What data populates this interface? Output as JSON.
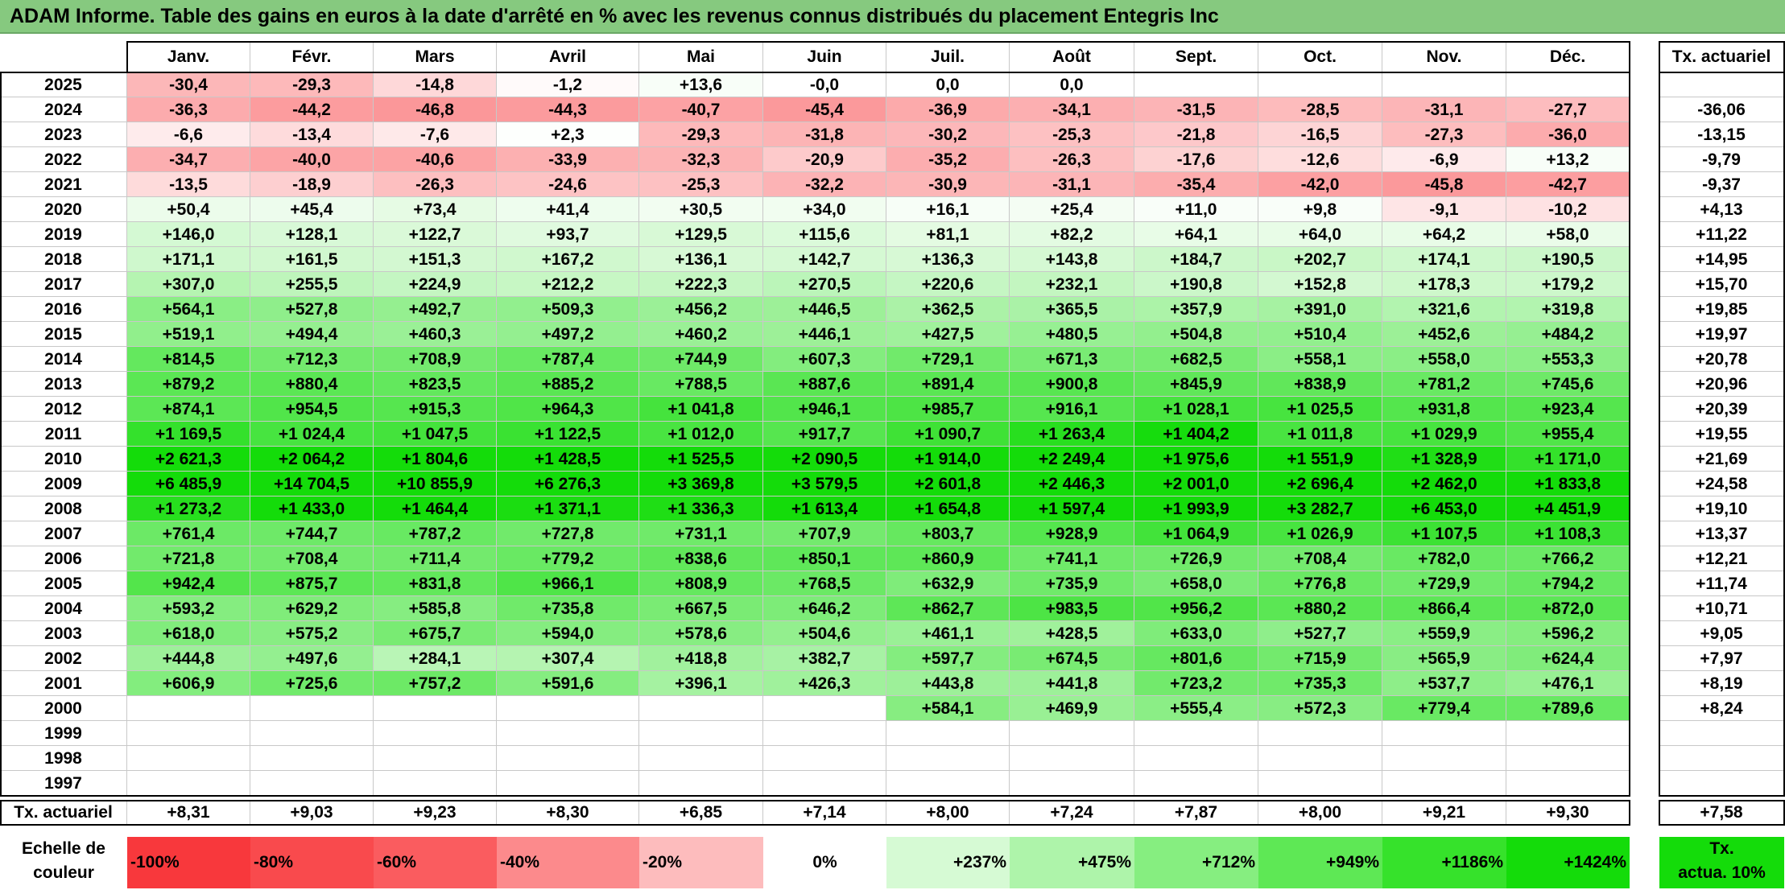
{
  "title": "ADAM Informe. Table des gains en euros à la date d'arrêté en % avec les revenus connus distribués du placement Entegris Inc",
  "chart_data": {
    "type": "table",
    "months": [
      "Janv.",
      "Févr.",
      "Mars",
      "Avril",
      "Mai",
      "Juin",
      "Juil.",
      "Août",
      "Sept.",
      "Oct.",
      "Nov.",
      "Déc."
    ],
    "rate_header": "Tx. actuariel",
    "rows": [
      {
        "year": "2025",
        "values": [
          "-30,4",
          "-29,3",
          "-14,8",
          "-1,2",
          "+13,6",
          "-0,0",
          "0,0",
          "0,0",
          "",
          "",
          "",
          ""
        ],
        "rate": ""
      },
      {
        "year": "2024",
        "values": [
          "-36,3",
          "-44,2",
          "-46,8",
          "-44,3",
          "-40,7",
          "-45,4",
          "-36,9",
          "-34,1",
          "-31,5",
          "-28,5",
          "-31,1",
          "-27,7"
        ],
        "rate": "-36,06"
      },
      {
        "year": "2023",
        "values": [
          "-6,6",
          "-13,4",
          "-7,6",
          "+2,3",
          "-29,3",
          "-31,8",
          "-30,2",
          "-25,3",
          "-21,8",
          "-16,5",
          "-27,3",
          "-36,0"
        ],
        "rate": "-13,15"
      },
      {
        "year": "2022",
        "values": [
          "-34,7",
          "-40,0",
          "-40,6",
          "-33,9",
          "-32,3",
          "-20,9",
          "-35,2",
          "-26,3",
          "-17,6",
          "-12,6",
          "-6,9",
          "+13,2"
        ],
        "rate": "-9,79"
      },
      {
        "year": "2021",
        "values": [
          "-13,5",
          "-18,9",
          "-26,3",
          "-24,6",
          "-25,3",
          "-32,2",
          "-30,9",
          "-31,1",
          "-35,4",
          "-42,0",
          "-45,8",
          "-42,7"
        ],
        "rate": "-9,37"
      },
      {
        "year": "2020",
        "values": [
          "+50,4",
          "+45,4",
          "+73,4",
          "+41,4",
          "+30,5",
          "+34,0",
          "+16,1",
          "+25,4",
          "+11,0",
          "+9,8",
          "-9,1",
          "-10,2"
        ],
        "rate": "+4,13"
      },
      {
        "year": "2019",
        "values": [
          "+146,0",
          "+128,1",
          "+122,7",
          "+93,7",
          "+129,5",
          "+115,6",
          "+81,1",
          "+82,2",
          "+64,1",
          "+64,0",
          "+64,2",
          "+58,0"
        ],
        "rate": "+11,22"
      },
      {
        "year": "2018",
        "values": [
          "+171,1",
          "+161,5",
          "+151,3",
          "+167,2",
          "+136,1",
          "+142,7",
          "+136,3",
          "+143,8",
          "+184,7",
          "+202,7",
          "+174,1",
          "+190,5"
        ],
        "rate": "+14,95"
      },
      {
        "year": "2017",
        "values": [
          "+307,0",
          "+255,5",
          "+224,9",
          "+212,2",
          "+222,3",
          "+270,5",
          "+220,6",
          "+232,1",
          "+190,8",
          "+152,8",
          "+178,3",
          "+179,2"
        ],
        "rate": "+15,70"
      },
      {
        "year": "2016",
        "values": [
          "+564,1",
          "+527,8",
          "+492,7",
          "+509,3",
          "+456,2",
          "+446,5",
          "+362,5",
          "+365,5",
          "+357,9",
          "+391,0",
          "+321,6",
          "+319,8"
        ],
        "rate": "+19,85"
      },
      {
        "year": "2015",
        "values": [
          "+519,1",
          "+494,4",
          "+460,3",
          "+497,2",
          "+460,2",
          "+446,1",
          "+427,5",
          "+480,5",
          "+504,8",
          "+510,4",
          "+452,6",
          "+484,2"
        ],
        "rate": "+19,97"
      },
      {
        "year": "2014",
        "values": [
          "+814,5",
          "+712,3",
          "+708,9",
          "+787,4",
          "+744,9",
          "+607,3",
          "+729,1",
          "+671,3",
          "+682,5",
          "+558,1",
          "+558,0",
          "+553,3"
        ],
        "rate": "+20,78"
      },
      {
        "year": "2013",
        "values": [
          "+879,2",
          "+880,4",
          "+823,5",
          "+885,2",
          "+788,5",
          "+887,6",
          "+891,4",
          "+900,8",
          "+845,9",
          "+838,9",
          "+781,2",
          "+745,6"
        ],
        "rate": "+20,96"
      },
      {
        "year": "2012",
        "values": [
          "+874,1",
          "+954,5",
          "+915,3",
          "+964,3",
          "+1 041,8",
          "+946,1",
          "+985,7",
          "+916,1",
          "+1 028,1",
          "+1 025,5",
          "+931,8",
          "+923,4"
        ],
        "rate": "+20,39"
      },
      {
        "year": "2011",
        "values": [
          "+1 169,5",
          "+1 024,4",
          "+1 047,5",
          "+1 122,5",
          "+1 012,0",
          "+917,7",
          "+1 090,7",
          "+1 263,4",
          "+1 404,2",
          "+1 011,8",
          "+1 029,9",
          "+955,4"
        ],
        "rate": "+19,55"
      },
      {
        "year": "2010",
        "values": [
          "+2 621,3",
          "+2 064,2",
          "+1 804,6",
          "+1 428,5",
          "+1 525,5",
          "+2 090,5",
          "+1 914,0",
          "+2 249,4",
          "+1 975,6",
          "+1 551,9",
          "+1 328,9",
          "+1 171,0"
        ],
        "rate": "+21,69"
      },
      {
        "year": "2009",
        "values": [
          "+6 485,9",
          "+14 704,5",
          "+10 855,9",
          "+6 276,3",
          "+3 369,8",
          "+3 579,5",
          "+2 601,8",
          "+2 446,3",
          "+2 001,0",
          "+2 696,4",
          "+2 462,0",
          "+1 833,8"
        ],
        "rate": "+24,58"
      },
      {
        "year": "2008",
        "values": [
          "+1 273,2",
          "+1 433,0",
          "+1 464,4",
          "+1 371,1",
          "+1 336,3",
          "+1 613,4",
          "+1 654,8",
          "+1 597,4",
          "+1 993,9",
          "+3 282,7",
          "+6 453,0",
          "+4 451,9"
        ],
        "rate": "+19,10"
      },
      {
        "year": "2007",
        "values": [
          "+761,4",
          "+744,7",
          "+787,2",
          "+727,8",
          "+731,1",
          "+707,9",
          "+803,7",
          "+928,9",
          "+1 064,9",
          "+1 026,9",
          "+1 107,5",
          "+1 108,3"
        ],
        "rate": "+13,37"
      },
      {
        "year": "2006",
        "values": [
          "+721,8",
          "+708,4",
          "+711,4",
          "+779,2",
          "+838,6",
          "+850,1",
          "+860,9",
          "+741,1",
          "+726,9",
          "+708,4",
          "+782,0",
          "+766,2"
        ],
        "rate": "+12,21"
      },
      {
        "year": "2005",
        "values": [
          "+942,4",
          "+875,7",
          "+831,8",
          "+966,1",
          "+808,9",
          "+768,5",
          "+632,9",
          "+735,9",
          "+658,0",
          "+776,8",
          "+729,9",
          "+794,2"
        ],
        "rate": "+11,74"
      },
      {
        "year": "2004",
        "values": [
          "+593,2",
          "+629,2",
          "+585,8",
          "+735,8",
          "+667,5",
          "+646,2",
          "+862,7",
          "+983,5",
          "+956,2",
          "+880,2",
          "+866,4",
          "+872,0"
        ],
        "rate": "+10,71"
      },
      {
        "year": "2003",
        "values": [
          "+618,0",
          "+575,2",
          "+675,7",
          "+594,0",
          "+578,6",
          "+504,6",
          "+461,1",
          "+428,5",
          "+633,0",
          "+527,7",
          "+559,9",
          "+596,2"
        ],
        "rate": "+9,05"
      },
      {
        "year": "2002",
        "values": [
          "+444,8",
          "+497,6",
          "+284,1",
          "+307,4",
          "+418,8",
          "+382,7",
          "+597,7",
          "+674,5",
          "+801,6",
          "+715,9",
          "+565,9",
          "+624,4"
        ],
        "rate": "+7,97"
      },
      {
        "year": "2001",
        "values": [
          "+606,9",
          "+725,6",
          "+757,2",
          "+591,6",
          "+396,1",
          "+426,3",
          "+443,8",
          "+441,8",
          "+723,2",
          "+735,3",
          "+537,7",
          "+476,1"
        ],
        "rate": "+8,19"
      },
      {
        "year": "2000",
        "values": [
          "",
          "",
          "",
          "",
          "",
          "",
          "+584,1",
          "+469,9",
          "+555,4",
          "+572,3",
          "+779,4",
          "+789,6"
        ],
        "rate": "+8,24"
      },
      {
        "year": "1999",
        "values": [
          "",
          "",
          "",
          "",
          "",
          "",
          "",
          "",
          "",
          "",
          "",
          ""
        ],
        "rate": ""
      },
      {
        "year": "1998",
        "values": [
          "",
          "",
          "",
          "",
          "",
          "",
          "",
          "",
          "",
          "",
          "",
          ""
        ],
        "rate": ""
      },
      {
        "year": "1997",
        "values": [
          "",
          "",
          "",
          "",
          "",
          "",
          "",
          "",
          "",
          "",
          "",
          ""
        ],
        "rate": ""
      }
    ],
    "footer": {
      "label": "Tx. actuariel",
      "values": [
        "+8,31",
        "+9,03",
        "+9,23",
        "+8,30",
        "+6,85",
        "+7,14",
        "+8,00",
        "+7,24",
        "+7,87",
        "+8,00",
        "+9,21",
        "+9,30"
      ],
      "rate": "+7,58"
    },
    "legend": {
      "label_line1": "Echelle de",
      "label_line2": "couleur",
      "stops": [
        {
          "label": "-100%",
          "color": "#f8383c"
        },
        {
          "label": "-80%",
          "color": "#f94a4d"
        },
        {
          "label": "-60%",
          "color": "#fa5c5f"
        },
        {
          "label": "-40%",
          "color": "#fc8a8c"
        },
        {
          "label": "-20%",
          "color": "#fdbcbd"
        },
        {
          "label": "0%",
          "color": "#ffffff"
        },
        {
          "label": "+237%",
          "color": "#d6fad4"
        },
        {
          "label": "+475%",
          "color": "#aef4aa"
        },
        {
          "label": "+712%",
          "color": "#86ee80"
        },
        {
          "label": "+949%",
          "color": "#5ee855"
        },
        {
          "label": "+1186%",
          "color": "#36e22b"
        },
        {
          "label": "+1424%",
          "color": "#14dc0a"
        }
      ],
      "rate_line1": "Tx.",
      "rate_line2": "actua. 10%",
      "rate_color": "#14dc0a"
    }
  }
}
